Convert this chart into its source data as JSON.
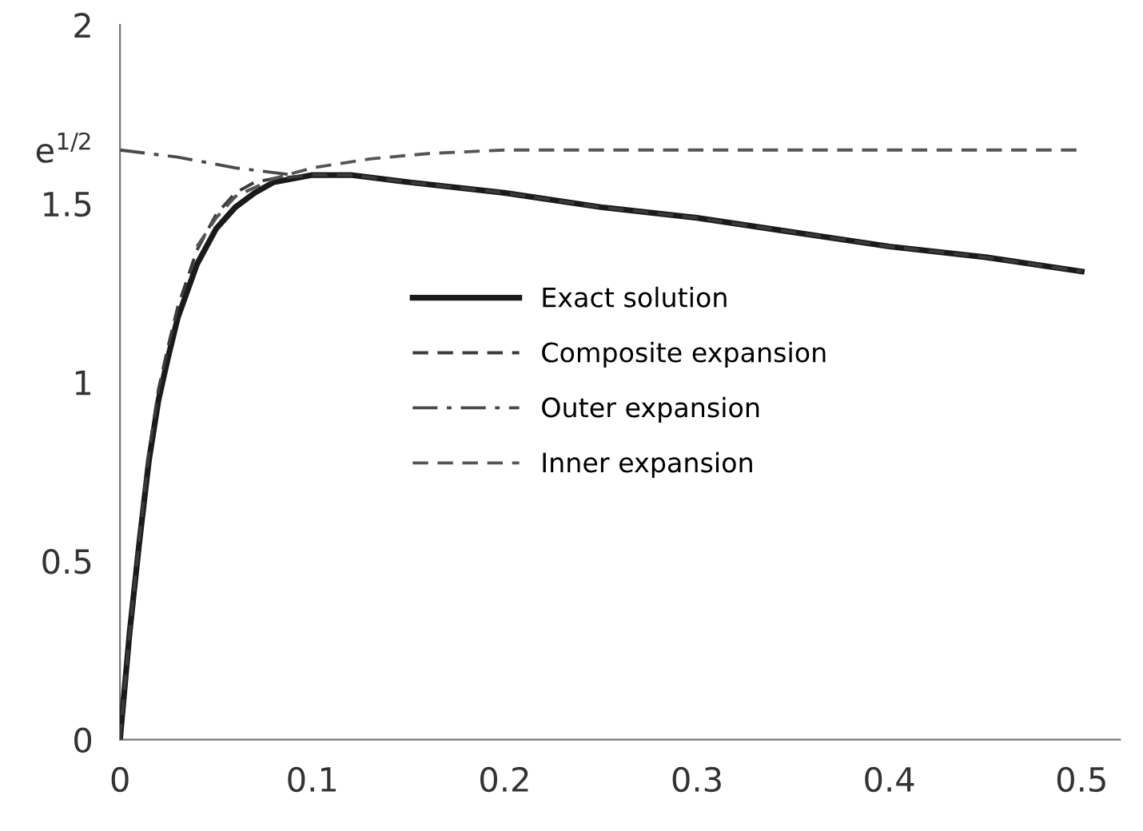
{
  "chart_data": {
    "type": "line",
    "xlim": [
      0,
      0.52
    ],
    "xticks": [
      0,
      0.1,
      0.2,
      0.3,
      0.4,
      0.5
    ],
    "ylim": [
      0,
      2.0
    ],
    "yticks": [
      0,
      0.5,
      1,
      1.5,
      {
        "value": 1.65,
        "label": "e$^{1/2}$"
      },
      2
    ],
    "grid": false,
    "legend": "center",
    "marker": "none",
    "series": [
      {
        "name": "Exact solution",
        "color": "#1a1a1a",
        "line_style": "solid",
        "x": [
          0,
          0.005,
          0.01,
          0.015,
          0.02,
          0.025,
          0.03,
          0.04,
          0.05,
          0.06,
          0.07,
          0.08,
          0.1,
          0.12,
          0.15,
          0.2,
          0.25,
          0.3,
          0.35,
          0.4,
          0.45,
          0.5
        ],
        "values": [
          0,
          0.3,
          0.55,
          0.78,
          0.95,
          1.07,
          1.18,
          1.33,
          1.43,
          1.49,
          1.53,
          1.56,
          1.58,
          1.58,
          1.56,
          1.53,
          1.49,
          1.46,
          1.42,
          1.38,
          1.35,
          1.31
        ]
      },
      {
        "name": "Composite expansion",
        "color": "#3a3a3a",
        "line_style": "dashed",
        "x": [
          0,
          0.005,
          0.01,
          0.015,
          0.02,
          0.025,
          0.03,
          0.04,
          0.05,
          0.06,
          0.07,
          0.08,
          0.1,
          0.12,
          0.15,
          0.2,
          0.25,
          0.3,
          0.35,
          0.4,
          0.45,
          0.5
        ],
        "values": [
          0,
          0.3,
          0.56,
          0.8,
          0.98,
          1.1,
          1.21,
          1.37,
          1.47,
          1.53,
          1.56,
          1.57,
          1.58,
          1.58,
          1.56,
          1.53,
          1.49,
          1.46,
          1.42,
          1.38,
          1.35,
          1.31
        ]
      },
      {
        "name": "Outer expansion",
        "color": "#4a4a4a",
        "line_style": "dashdot",
        "x": [
          0,
          0.03,
          0.06,
          0.09
        ],
        "values": [
          1.65,
          1.63,
          1.6,
          1.58
        ]
      },
      {
        "name": "Inner expansion",
        "color": "#555555",
        "line_style": "dashed",
        "x": [
          0.04,
          0.05,
          0.06,
          0.08,
          0.1,
          0.13,
          0.16,
          0.2,
          0.3,
          0.5
        ],
        "values": [
          1.38,
          1.46,
          1.52,
          1.57,
          1.6,
          1.625,
          1.64,
          1.65,
          1.65,
          1.65
        ]
      }
    ]
  }
}
